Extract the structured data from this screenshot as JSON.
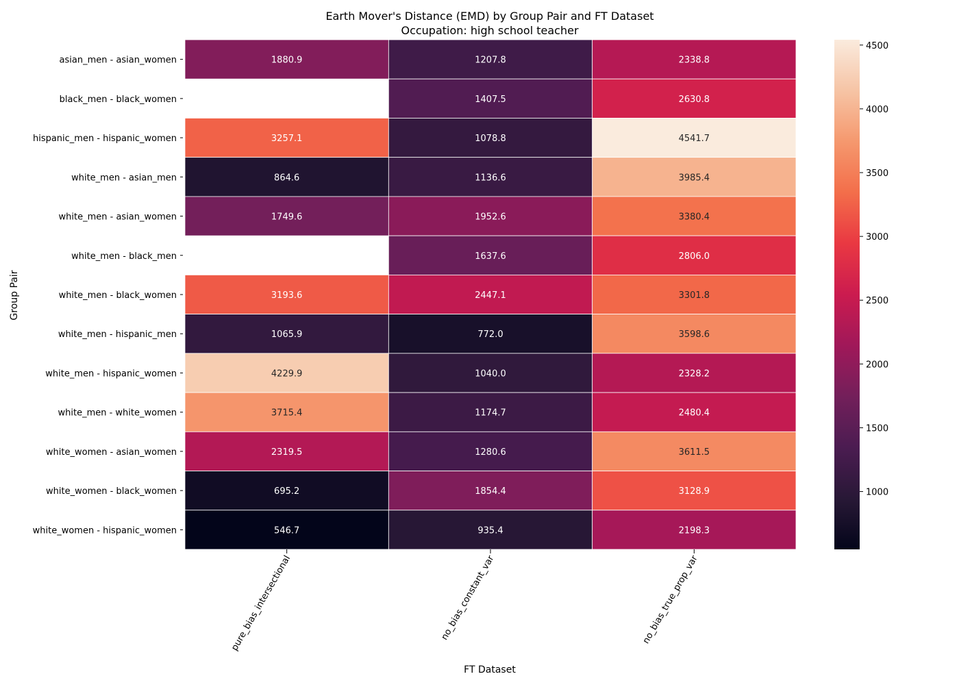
{
  "chart_data": {
    "type": "heatmap",
    "title": "Earth Mover's Distance (EMD) by Group Pair and FT Dataset",
    "subtitle": "Occupation: high school teacher",
    "xlabel": "FT Dataset",
    "ylabel": "Group Pair",
    "x_categories": [
      "pure_bias_intersectional",
      "no_bias_constant_var",
      "no_bias_true_prop_var"
    ],
    "y_categories": [
      "asian_men - asian_women",
      "black_men - black_women",
      "hispanic_men - hispanic_women",
      "white_men - asian_men",
      "white_men - asian_women",
      "white_men - black_men",
      "white_men - black_women",
      "white_men - hispanic_men",
      "white_men - hispanic_women",
      "white_men - white_women",
      "white_women - asian_women",
      "white_women - black_women",
      "white_women - hispanic_women"
    ],
    "values": [
      [
        1880.9,
        1207.8,
        2338.8
      ],
      [
        null,
        1407.5,
        2630.8
      ],
      [
        3257.1,
        1078.8,
        4541.7
      ],
      [
        864.6,
        1136.6,
        3985.4
      ],
      [
        1749.6,
        1952.6,
        3380.4
      ],
      [
        null,
        1637.6,
        2806.0
      ],
      [
        3193.6,
        2447.1,
        3301.8
      ],
      [
        1065.9,
        772.0,
        3598.6
      ],
      [
        4229.9,
        1040.0,
        2328.2
      ],
      [
        3715.4,
        1174.7,
        2480.4
      ],
      [
        2319.5,
        1280.6,
        3611.5
      ],
      [
        695.2,
        1854.4,
        3128.9
      ],
      [
        546.7,
        935.4,
        2198.3
      ]
    ],
    "colorbar": {
      "colormap": "rocket",
      "vmin": 546.7,
      "vmax": 4541.7,
      "ticks": [
        1000,
        1500,
        2000,
        2500,
        3000,
        3500,
        4000,
        4500
      ]
    }
  }
}
